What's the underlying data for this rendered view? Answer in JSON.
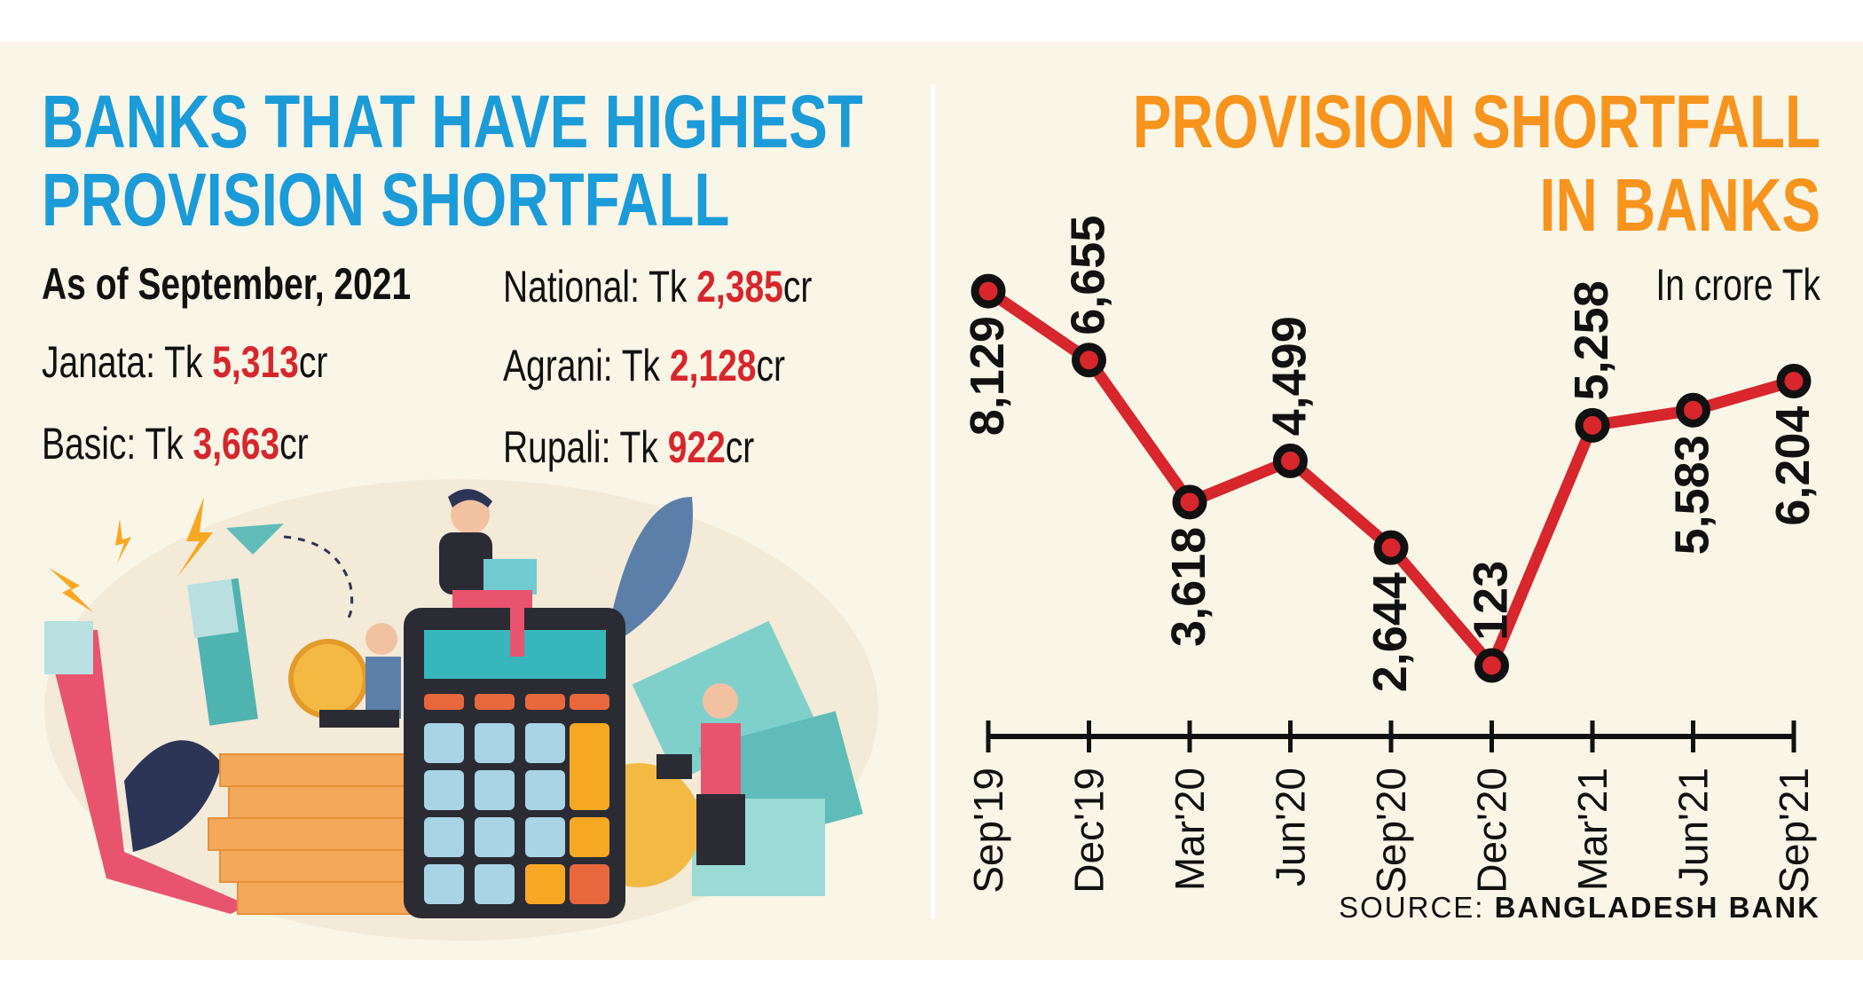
{
  "left": {
    "title_lines": [
      "BANKS THAT HAVE HIGHEST",
      "PROVISION SHORTFALL"
    ],
    "as_of": "As of September, 2021",
    "banks": [
      {
        "name": "Janata",
        "prefix": "Tk",
        "value": "5,313",
        "suffix": "cr"
      },
      {
        "name": "Basic",
        "prefix": "Tk",
        "value": "3,663",
        "suffix": "cr"
      },
      {
        "name": "National",
        "prefix": "Tk",
        "value": "2,385",
        "suffix": "cr"
      },
      {
        "name": "Agrani",
        "prefix": "Tk",
        "value": "2,128",
        "suffix": "cr"
      },
      {
        "name": "Rupali",
        "prefix": "Tk",
        "value": "922",
        "suffix": "cr"
      }
    ],
    "illustration": "finance-illustration-calculator-coins-people"
  },
  "colors": {
    "title_left": "#1b9bd8",
    "title_right": "#f7941d",
    "value": "#d7262c",
    "line": "#d7262c",
    "background": "#f9f5e7"
  },
  "chart_data": {
    "type": "line",
    "title": "PROVISION SHORTFALL IN BANKS",
    "title_lines": [
      "PROVISION SHORTFALL",
      "IN BANKS"
    ],
    "unit": "In crore Tk",
    "categories": [
      "Sep'19",
      "Dec'19",
      "Mar'20",
      "Jun'20",
      "Sep'20",
      "Dec'20",
      "Mar'21",
      "Jun'21",
      "Sep'21"
    ],
    "values": [
      8129,
      6655,
      3618,
      4499,
      2644,
      123,
      5258,
      5583,
      6204
    ],
    "value_labels": [
      "8,129",
      "6,655",
      "3,618",
      "4,499",
      "2,644",
      "123",
      "5,258",
      "5,583",
      "6,204"
    ],
    "xlabel": "",
    "ylabel": "",
    "y_axis_shown": false,
    "grid": false,
    "source_prefix": "SOURCE:",
    "source": "BANGLADESH BANK"
  }
}
